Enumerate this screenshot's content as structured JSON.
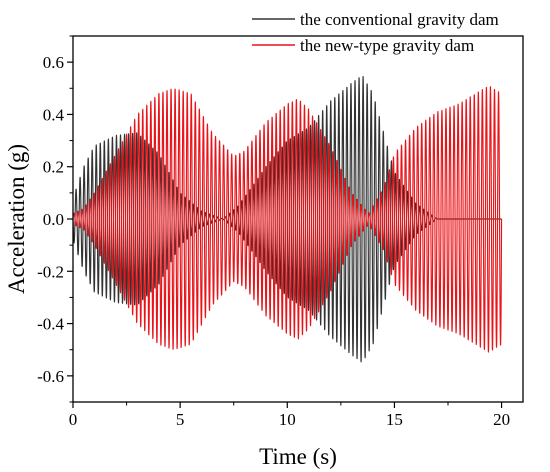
{
  "colors": {
    "conventional": "#333333",
    "new_type": "#e8141a",
    "axis": "#000000"
  },
  "chart_data": {
    "type": "line",
    "title": "",
    "xlabel": "Time (s)",
    "ylabel": "Acceleration (g)",
    "xlim": [
      0,
      21
    ],
    "ylim": [
      -0.7,
      0.7
    ],
    "xticks": [
      "0",
      "5",
      "10",
      "15",
      "20"
    ],
    "xtick_values": [
      0,
      5,
      10,
      15,
      20
    ],
    "yticks": [
      "-0.6",
      "-0.4",
      "-0.2",
      "0.0",
      "0.2",
      "0.4",
      "0.6"
    ],
    "ytick_values": [
      -0.6,
      -0.4,
      -0.2,
      0.0,
      0.2,
      0.4,
      0.6
    ],
    "grid": false,
    "legend_position": "top-right",
    "oscillation_frequency_hz": 5.3,
    "x_range": [
      0,
      20
    ],
    "series": [
      {
        "name": "the conventional gravity dam",
        "color": "#333333",
        "phase_rad": 3.14159,
        "envelope": {
          "t": [
            0,
            0.5,
            1,
            2,
            3,
            4,
            5,
            6,
            7,
            7.7,
            8.5,
            9,
            10,
            11,
            12,
            13,
            13.5,
            14,
            14.6,
            15,
            16,
            17,
            18,
            19,
            20
          ],
          "amp": [
            0.08,
            0.2,
            0.28,
            0.32,
            0.33,
            0.25,
            0.1,
            0.03,
            0.0,
            0.05,
            0.14,
            0.2,
            0.3,
            0.35,
            0.45,
            0.52,
            0.55,
            0.48,
            0.3,
            0.18,
            0.06,
            0.0,
            0.0,
            0.0,
            0.0
          ]
        }
      },
      {
        "name": "the new-type gravity dam",
        "color": "#e8141a",
        "phase_rad": 0,
        "envelope": {
          "t": [
            0,
            0.5,
            1,
            2,
            3,
            4,
            4.7,
            5.5,
            6.5,
            7.5,
            8,
            9,
            10,
            10.5,
            11,
            12,
            13,
            13.8,
            14.5,
            15,
            16,
            17,
            18,
            19,
            19.4,
            20
          ],
          "amp": [
            0.02,
            0.04,
            0.1,
            0.25,
            0.4,
            0.48,
            0.5,
            0.48,
            0.33,
            0.24,
            0.26,
            0.37,
            0.44,
            0.46,
            0.42,
            0.28,
            0.1,
            0.02,
            0.12,
            0.25,
            0.35,
            0.41,
            0.44,
            0.49,
            0.51,
            0.48
          ]
        }
      }
    ]
  }
}
